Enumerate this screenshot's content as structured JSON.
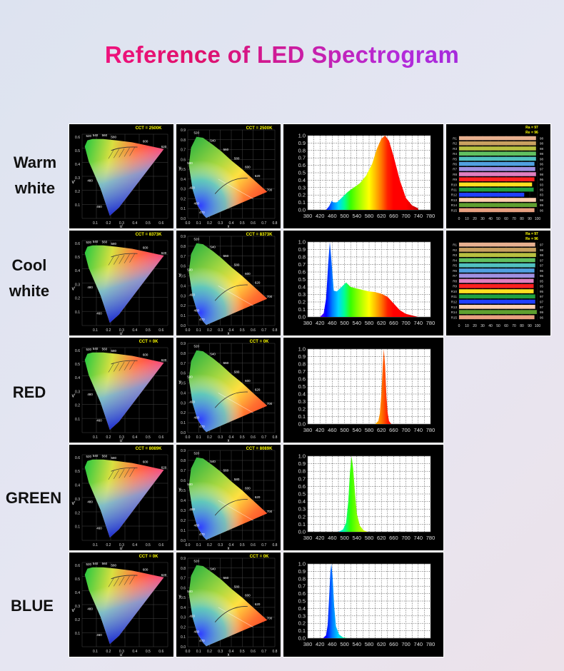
{
  "title": "Reference of LED Spectrogram",
  "colors": {
    "title_gradient": [
      "#ff1493",
      "#8a2be2"
    ],
    "panel_background": "#000000",
    "cct_label": "#ffff00"
  },
  "spectrum_axis": {
    "x_ticks": [
      "380",
      "420",
      "460",
      "500",
      "540",
      "580",
      "620",
      "660",
      "700",
      "740",
      "780"
    ],
    "y_ticks": [
      "0.0",
      "0.1",
      "0.2",
      "0.3",
      "0.4",
      "0.5",
      "0.6",
      "0.7",
      "0.8",
      "0.9",
      "1.0"
    ]
  },
  "cie_uv_axis": {
    "x_ticks": [
      "0.1",
      "0.2",
      "0.3",
      "0.4",
      "0.5",
      "0.6"
    ],
    "y_ticks": [
      "0.1",
      "0.2",
      "0.3",
      "0.4",
      "0.5",
      "0.6"
    ],
    "wavelength_labels": [
      "520",
      "540",
      "560",
      "580",
      "600",
      "620",
      "480",
      "460"
    ],
    "xlabel": "u'",
    "ylabel": "v'"
  },
  "cie_xy_axis": {
    "x_ticks": [
      "0.0",
      "0.1",
      "0.2",
      "0.3",
      "0.4",
      "0.5",
      "0.6",
      "0.7",
      "0.8"
    ],
    "y_ticks": [
      "0.0",
      "0.1",
      "0.2",
      "0.3",
      "0.4",
      "0.5",
      "0.6",
      "0.7",
      "0.8",
      "0.9"
    ],
    "wavelength_labels": [
      "520",
      "540",
      "560",
      "580",
      "600",
      "620",
      "700",
      "500",
      "490",
      "480",
      "470"
    ],
    "xlabel": "x",
    "ylabel": "y"
  },
  "cri_axis": {
    "x_ticks": [
      "0",
      "10",
      "20",
      "30",
      "40",
      "50",
      "60",
      "70",
      "80",
      "90",
      "100"
    ]
  },
  "rows": [
    {
      "label_lines": [
        "Warm",
        "white"
      ],
      "cct": "CCT = 2500K"
    },
    {
      "label_lines": [
        "Cool",
        "white"
      ],
      "cct": "CCT = 8373K"
    },
    {
      "label_lines": [
        "RED"
      ],
      "cct": "CCT = 0K"
    },
    {
      "label_lines": [
        "GREEN"
      ],
      "cct": "CCT = 8089K"
    },
    {
      "label_lines": [
        "BLUE"
      ],
      "cct": "CCT = 0K"
    }
  ],
  "chart_data": [
    {
      "type": "area",
      "name": "Warm white",
      "xlim": [
        380,
        780
      ],
      "ylim": [
        0,
        1.0
      ],
      "x": [
        440,
        450,
        458,
        465,
        475,
        490,
        510,
        530,
        550,
        570,
        590,
        605,
        620,
        632,
        645,
        660,
        680,
        700,
        720,
        740
      ],
      "y": [
        0.0,
        0.05,
        0.12,
        0.1,
        0.1,
        0.16,
        0.24,
        0.3,
        0.36,
        0.46,
        0.62,
        0.82,
        0.96,
        1.0,
        0.93,
        0.72,
        0.4,
        0.16,
        0.06,
        0.02
      ]
    },
    {
      "type": "area",
      "name": "Cool white",
      "xlim": [
        380,
        780
      ],
      "ylim": [
        0,
        1.0
      ],
      "x": [
        420,
        432,
        440,
        447,
        452,
        458,
        465,
        475,
        490,
        505,
        520,
        540,
        560,
        580,
        600,
        620,
        640,
        660,
        680,
        700,
        720,
        740
      ],
      "y": [
        0.0,
        0.05,
        0.25,
        0.72,
        1.0,
        0.72,
        0.35,
        0.34,
        0.4,
        0.46,
        0.4,
        0.38,
        0.36,
        0.34,
        0.33,
        0.31,
        0.27,
        0.18,
        0.09,
        0.04,
        0.02,
        0.0
      ]
    },
    {
      "type": "area",
      "name": "RED",
      "xlim": [
        380,
        780
      ],
      "ylim": [
        0,
        1.0
      ],
      "x": [
        600,
        610,
        615,
        620,
        625,
        628,
        632,
        636,
        640,
        645,
        652
      ],
      "y": [
        0.0,
        0.04,
        0.14,
        0.4,
        0.8,
        1.0,
        0.78,
        0.4,
        0.16,
        0.04,
        0.0
      ]
    },
    {
      "type": "area",
      "name": "GREEN",
      "xlim": [
        380,
        780
      ],
      "ylim": [
        0,
        1.0
      ],
      "x": [
        480,
        495,
        505,
        512,
        518,
        523,
        528,
        534,
        540,
        550,
        562,
        575
      ],
      "y": [
        0.0,
        0.03,
        0.12,
        0.4,
        0.8,
        1.0,
        0.84,
        0.52,
        0.24,
        0.08,
        0.02,
        0.0
      ]
    },
    {
      "type": "area",
      "name": "BLUE",
      "xlim": [
        380,
        780
      ],
      "ylim": [
        0,
        1.0
      ],
      "x": [
        430,
        440,
        445,
        450,
        454,
        457,
        461,
        466,
        472,
        482,
        495,
        510
      ],
      "y": [
        0.0,
        0.04,
        0.18,
        0.56,
        0.9,
        1.0,
        0.84,
        0.44,
        0.16,
        0.05,
        0.01,
        0.0
      ]
    },
    {
      "type": "bar",
      "name": "Warm white CRI",
      "xlim": [
        0,
        100
      ],
      "summary": [
        "Ra = 97",
        "Re = 96"
      ],
      "categories": [
        "R1",
        "R2",
        "R3",
        "R4",
        "R5",
        "R6",
        "R7",
        "R8",
        "R9",
        "R10",
        "R11",
        "R12",
        "R13",
        "R14",
        "R15"
      ],
      "values": [
        98,
        98,
        98,
        98,
        98,
        96,
        97,
        98,
        96,
        93,
        95,
        83,
        98,
        99,
        96
      ],
      "colors": [
        "#e8b090",
        "#c9a060",
        "#b8c040",
        "#60c060",
        "#50c0c0",
        "#50a0e0",
        "#a090e0",
        "#e080c0",
        "#ff2020",
        "#ffe020",
        "#20a040",
        "#2040ff",
        "#ffd0b0",
        "#60a030",
        "#e8a080"
      ]
    },
    {
      "type": "bar",
      "name": "Cool white CRI",
      "xlim": [
        0,
        100
      ],
      "summary": [
        "Ra = 97",
        "Re = 96"
      ],
      "categories": [
        "R1",
        "R2",
        "R3",
        "R4",
        "R5",
        "R6",
        "R7",
        "R8",
        "R9",
        "R10",
        "R11",
        "R12",
        "R13",
        "R14",
        "R15"
      ],
      "values": [
        97,
        98,
        98,
        97,
        97,
        96,
        96,
        95,
        95,
        95,
        97,
        97,
        97,
        99,
        96
      ],
      "colors": [
        "#e8b090",
        "#c9a060",
        "#b8c040",
        "#60c060",
        "#50c0c0",
        "#50a0e0",
        "#a090e0",
        "#e080c0",
        "#ff2020",
        "#ffe020",
        "#20a040",
        "#2040ff",
        "#ffd0b0",
        "#60a030",
        "#e8a080"
      ]
    }
  ]
}
